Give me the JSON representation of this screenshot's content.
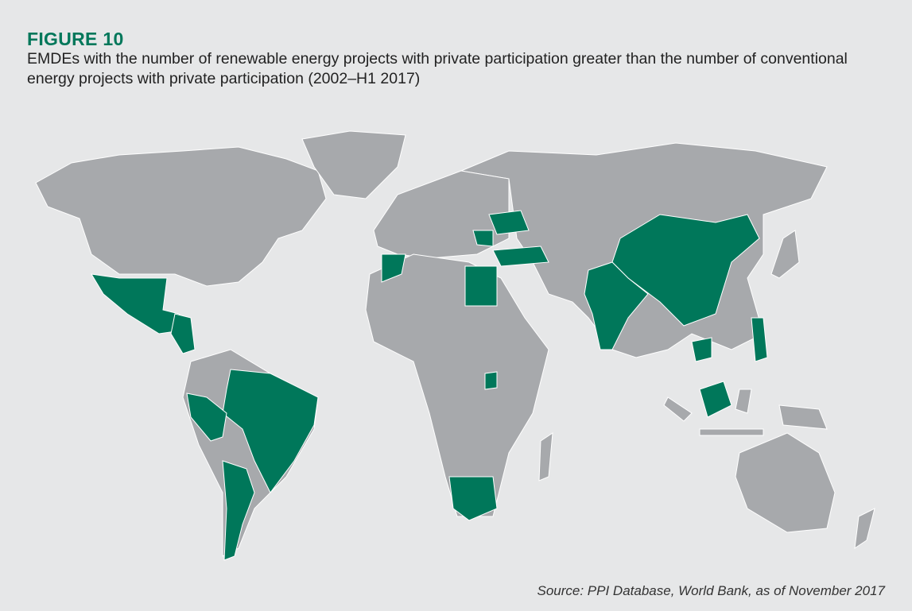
{
  "figure": {
    "label": "FIGURE 10",
    "title": "EMDEs with the number of renewable energy projects with private participation greater than the number of conventional energy projects with private participation (2002–H1 2017)",
    "source": "Source: PPI Database, World Bank, as of November 2017"
  }
}
